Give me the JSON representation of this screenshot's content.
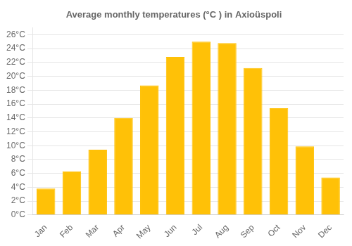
{
  "chart_data": {
    "type": "bar",
    "title": "Average monthly temperatures (°C ) in Axioüspoli",
    "categories": [
      "Jan",
      "Feb",
      "Mar",
      "Apr",
      "May",
      "Jun",
      "Jul",
      "Aug",
      "Sep",
      "Oct",
      "Nov",
      "Dec"
    ],
    "values": [
      3.8,
      6.3,
      9.4,
      14.0,
      18.7,
      22.8,
      25.0,
      24.8,
      21.2,
      15.4,
      9.9,
      5.4
    ],
    "color": "#FFC107",
    "ylim": [
      0,
      27
    ],
    "yticks": [
      {
        "value": 0,
        "label": "0°C"
      },
      {
        "value": 2,
        "label": "2°C"
      },
      {
        "value": 4,
        "label": "4°C"
      },
      {
        "value": 6,
        "label": "6°C"
      },
      {
        "value": 8,
        "label": "8°C"
      },
      {
        "value": 10,
        "label": "10°C"
      },
      {
        "value": 12,
        "label": "12°C"
      },
      {
        "value": 14,
        "label": "14°C"
      },
      {
        "value": 16,
        "label": "16°C"
      },
      {
        "value": 18,
        "label": "18°C"
      },
      {
        "value": 20,
        "label": "20°C"
      },
      {
        "value": 22,
        "label": "22°C"
      },
      {
        "value": 24,
        "label": "24°C"
      },
      {
        "value": 26,
        "label": "26°C"
      }
    ],
    "grid": true
  }
}
